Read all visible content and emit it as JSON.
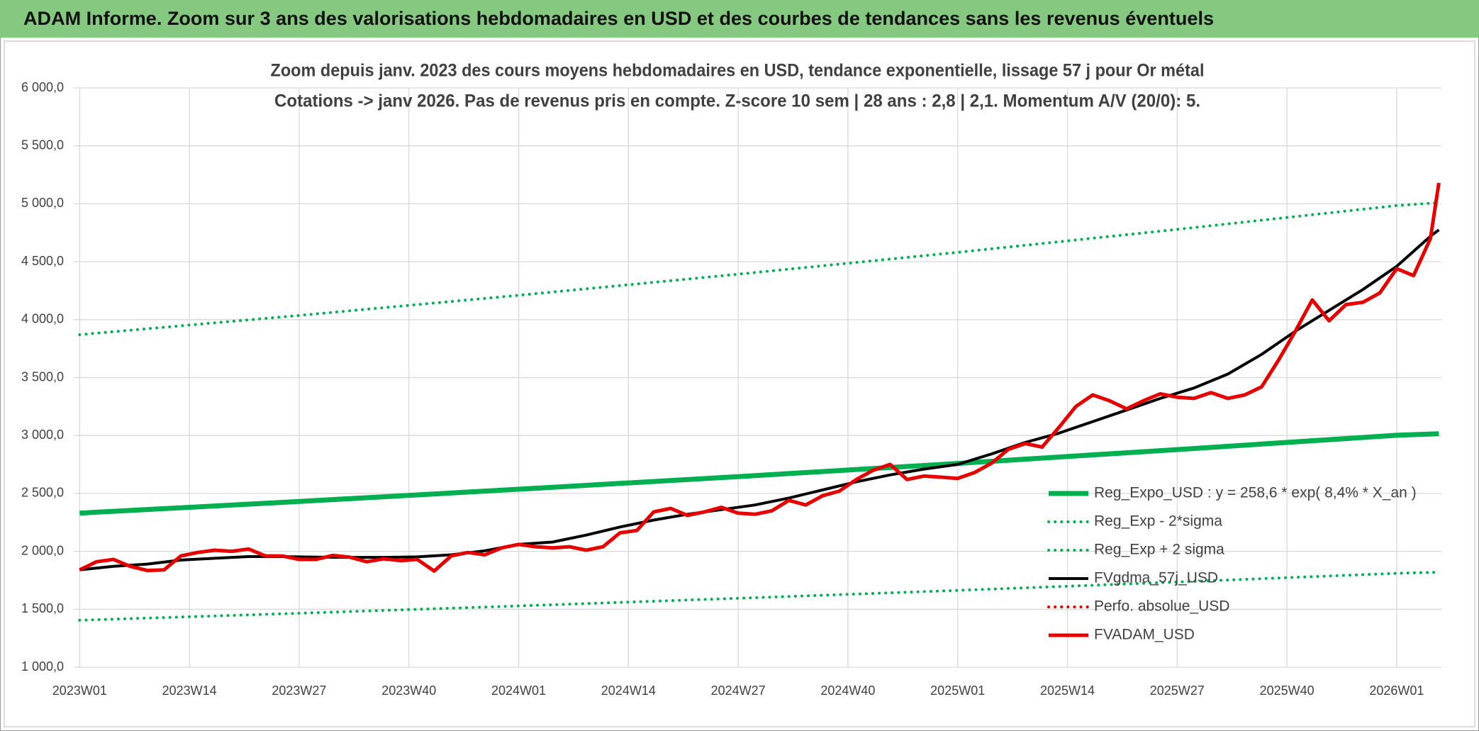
{
  "header": {
    "title": "ADAM Informe. Zoom sur 3 ans des valorisations hebdomadaires en USD et des courbes de tendances sans les revenus éventuels"
  },
  "chart_data": {
    "type": "line",
    "title": "Zoom depuis janv. 2023 des cours moyens hebdomadaires en USD, tendance exponentielle, lissage 57 j pour Or métal",
    "subtitle": "Cotations -> janv 2026. Pas de revenus pris en compte. Z-score 10 sem | 28 ans : 2,8 | 2,1. Momentum A/V (20/0): 5.",
    "xlim": [
      -0.7,
      161.3
    ],
    "xticks": [
      {
        "value": 0,
        "label": "2023W01"
      },
      {
        "value": 13,
        "label": "2023W14"
      },
      {
        "value": 26,
        "label": "2023W27"
      },
      {
        "value": 39,
        "label": "2023W40"
      },
      {
        "value": 52,
        "label": "2024W01"
      },
      {
        "value": 65,
        "label": "2024W14"
      },
      {
        "value": 78,
        "label": "2024W27"
      },
      {
        "value": 91,
        "label": "2024W40"
      },
      {
        "value": 104,
        "label": "2025W01"
      },
      {
        "value": 117,
        "label": "2025W14"
      },
      {
        "value": 130,
        "label": "2025W27"
      },
      {
        "value": 143,
        "label": "2025W40"
      },
      {
        "value": 156,
        "label": "2026W01"
      }
    ],
    "ylim": [
      1000,
      6000
    ],
    "yticks": [
      {
        "value": 1000,
        "label": "1 000,0"
      },
      {
        "value": 1500,
        "label": "1 500,0"
      },
      {
        "value": 2000,
        "label": "2 000,0"
      },
      {
        "value": 2500,
        "label": "2 500,0"
      },
      {
        "value": 3000,
        "label": "3 000,0"
      },
      {
        "value": 3500,
        "label": "3 500,0"
      },
      {
        "value": 4000,
        "label": "4 000,0"
      },
      {
        "value": 4500,
        "label": "4 500,0"
      },
      {
        "value": 5000,
        "label": "5 000,0"
      },
      {
        "value": 5500,
        "label": "5 500,0"
      },
      {
        "value": 6000,
        "label": "6 000,0"
      }
    ],
    "grid": true,
    "legend": "lower right",
    "series": [
      {
        "name": "Reg_Expo_USD : y = 258,6 * exp( 8,4% *  X_an )",
        "color": "#00b050",
        "style": "solid",
        "width": 7,
        "x": [
          0,
          26,
          52,
          78,
          104,
          130,
          156,
          161
        ],
        "values": [
          2330,
          2430,
          2536,
          2645,
          2759,
          2878,
          3002,
          3015
        ]
      },
      {
        "name": "Reg_Exp - 2*sigma",
        "color": "#00b050",
        "style": "dotted",
        "width": 4,
        "x": [
          0,
          26,
          52,
          78,
          104,
          130,
          156,
          161
        ],
        "values": [
          1405,
          1466,
          1529,
          1595,
          1663,
          1735,
          1810,
          1820
        ]
      },
      {
        "name": "Reg_Exp + 2 sigma",
        "color": "#00b050",
        "style": "dotted",
        "width": 4,
        "x": [
          0,
          26,
          52,
          78,
          104,
          130,
          156,
          161
        ],
        "values": [
          3870,
          4036,
          4210,
          4392,
          4581,
          4779,
          4985,
          5010
        ]
      },
      {
        "name": "FVgdma_57j_USD",
        "color": "#000000",
        "style": "solid",
        "width": 4,
        "x": [
          0,
          4,
          8,
          12,
          16,
          20,
          24,
          28,
          32,
          36,
          40,
          44,
          48,
          52,
          56,
          60,
          64,
          68,
          72,
          76,
          80,
          84,
          88,
          92,
          96,
          100,
          104,
          108,
          112,
          116,
          120,
          124,
          128,
          132,
          136,
          140,
          144,
          148,
          152,
          156,
          160,
          161
        ],
        "values": [
          1840,
          1870,
          1890,
          1925,
          1940,
          1955,
          1955,
          1950,
          1948,
          1948,
          1952,
          1970,
          2005,
          2060,
          2080,
          2140,
          2210,
          2270,
          2320,
          2360,
          2400,
          2460,
          2530,
          2600,
          2660,
          2710,
          2750,
          2840,
          2940,
          3020,
          3120,
          3220,
          3320,
          3410,
          3530,
          3700,
          3900,
          4080,
          4260,
          4460,
          4720,
          4775
        ]
      },
      {
        "name": "Perfo. absolue_USD",
        "color": "#e00000",
        "style": "dotted",
        "width": 4,
        "x": [],
        "values": []
      },
      {
        "name": "FVADAM_USD",
        "color": "#e80000",
        "style": "solid",
        "width": 5,
        "x": [
          0,
          2,
          4,
          6,
          8,
          10,
          12,
          14,
          16,
          18,
          20,
          22,
          24,
          26,
          28,
          30,
          32,
          34,
          36,
          38,
          40,
          42,
          44,
          46,
          48,
          50,
          52,
          54,
          56,
          58,
          60,
          62,
          64,
          66,
          68,
          70,
          72,
          74,
          76,
          78,
          80,
          82,
          84,
          86,
          88,
          90,
          92,
          94,
          96,
          98,
          100,
          102,
          104,
          106,
          108,
          110,
          112,
          114,
          116,
          118,
          120,
          122,
          124,
          126,
          128,
          130,
          132,
          134,
          136,
          138,
          140,
          142,
          144,
          146,
          148,
          150,
          152,
          154,
          156,
          158,
          160,
          161
        ],
        "values": [
          1840,
          1910,
          1930,
          1870,
          1835,
          1840,
          1960,
          1990,
          2010,
          2000,
          2020,
          1960,
          1960,
          1930,
          1930,
          1965,
          1950,
          1910,
          1935,
          1920,
          1930,
          1830,
          1960,
          1990,
          1970,
          2030,
          2060,
          2040,
          2030,
          2040,
          2010,
          2040,
          2160,
          2180,
          2340,
          2370,
          2310,
          2340,
          2380,
          2330,
          2320,
          2350,
          2440,
          2400,
          2480,
          2520,
          2620,
          2700,
          2750,
          2620,
          2650,
          2640,
          2630,
          2680,
          2760,
          2880,
          2930,
          2900,
          3070,
          3250,
          3350,
          3300,
          3230,
          3300,
          3360,
          3330,
          3320,
          3370,
          3320,
          3350,
          3420,
          3650,
          3900,
          4170,
          3990,
          4130,
          4150,
          4230,
          4440,
          4380,
          4700,
          5180
        ]
      }
    ]
  }
}
